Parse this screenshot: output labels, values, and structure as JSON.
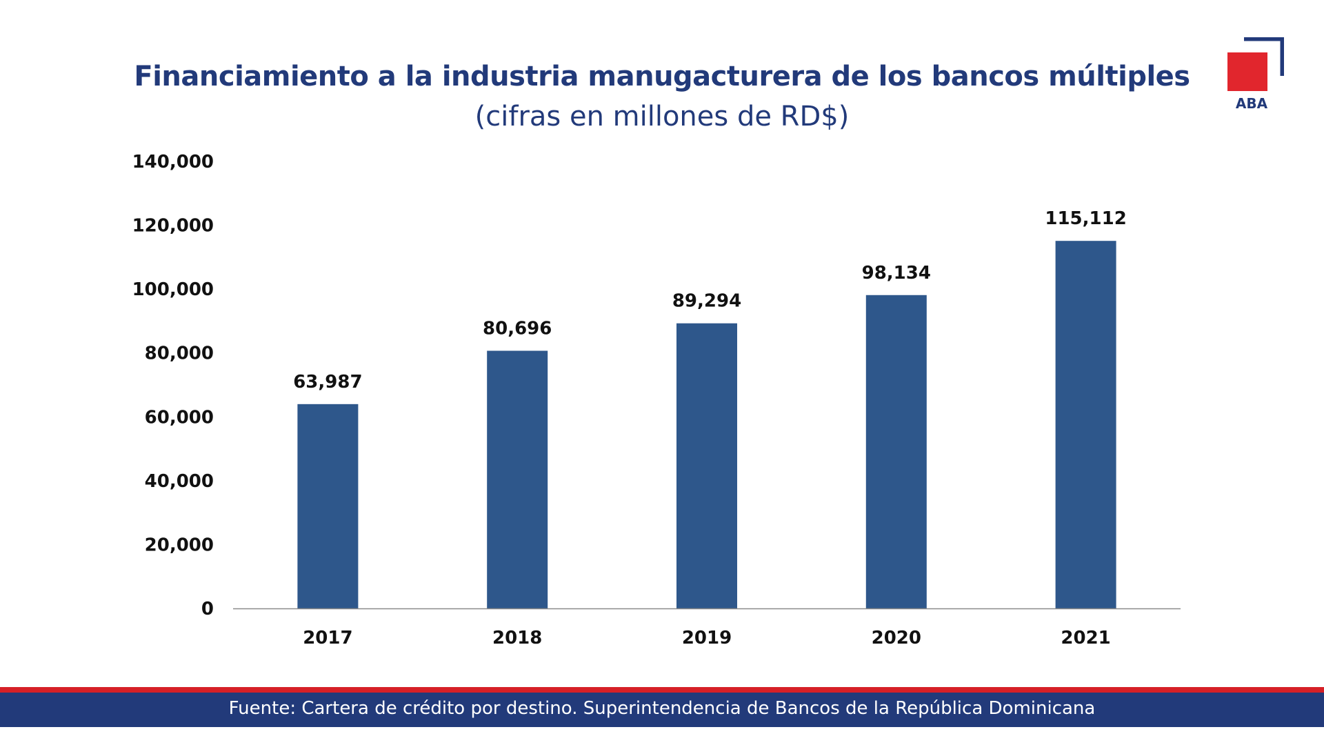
{
  "logo": {
    "text": "ABA",
    "accent_color": "#e1262d",
    "brand_color": "#223a7a"
  },
  "footer": {
    "source": "Fuente: Cartera de crédito por destino. Superintendencia de Bancos de la República Dominicana",
    "stripe_color": "#d62027",
    "bar_color": "#223a7a"
  },
  "chart_data": {
    "type": "bar",
    "title": "Financiamiento a la industria manugacturera de los bancos múltiples",
    "subtitle": "(cifras en millones de RD$)",
    "xlabel": "",
    "ylabel": "",
    "categories": [
      "2017",
      "2018",
      "2019",
      "2020",
      "2021"
    ],
    "values": [
      63987,
      80696,
      89294,
      98134,
      115112
    ],
    "value_labels": [
      "63,987",
      "80,696",
      "89,294",
      "98,134",
      "115,112"
    ],
    "ylim": [
      0,
      140000
    ],
    "yticks": [
      0,
      20000,
      40000,
      60000,
      80000,
      100000,
      120000,
      140000
    ],
    "ytick_labels": [
      "0",
      "20,000",
      "40,000",
      "60,000",
      "80,000",
      "100,000",
      "120,000",
      "140,000"
    ],
    "bar_color": "#2e578b",
    "grid": false,
    "legend": "none"
  }
}
